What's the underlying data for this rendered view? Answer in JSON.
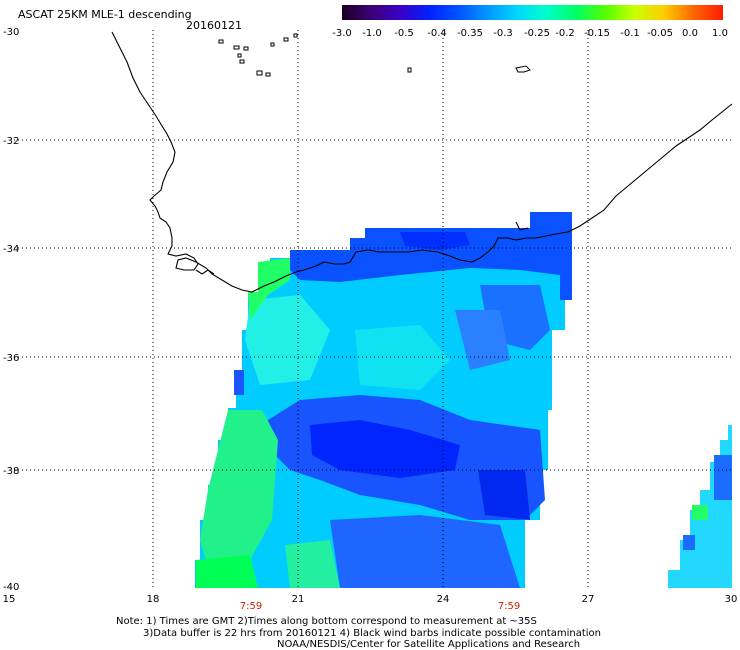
{
  "header": {
    "title": "ASCAT 25KM MLE-1 descending",
    "date": "20160121"
  },
  "colorbar": {
    "labels": [
      "-3.0",
      "-1.0",
      "-0.5",
      "-0.4",
      "-0.35",
      "-0.3",
      "-0.25",
      "-0.2",
      "-0.15",
      "-0.1",
      "-0.05",
      "0.0",
      "1.0"
    ],
    "colors": [
      "#1a0020",
      "#3c0078",
      "#3a00c8",
      "#0022ff",
      "#0055ff",
      "#0099ff",
      "#00d8ff",
      "#00ffc8",
      "#00ff66",
      "#55ff00",
      "#ccff00",
      "#ffcc00",
      "#ff6600",
      "#ff1a00"
    ]
  },
  "map": {
    "lat_labels": [
      "-30",
      "-32",
      "-34",
      "-36",
      "-38",
      "-40"
    ],
    "lon_labels": [
      "15",
      "18",
      "21",
      "24",
      "27",
      "30"
    ],
    "time_labels": [
      "7:59",
      "7:59"
    ],
    "time_label_color": "#cc2200"
  },
  "notes": {
    "line1": "Note: 1) Times are GMT 2)Times along bottom correspond to measurement at ~35S",
    "line2": "3)Data buffer is 22 hrs from 20160121 4) Black wind barbs indicate possible contamination",
    "line3": "NOAA/NESDIS/Center for Satellite Applications and Research"
  }
}
